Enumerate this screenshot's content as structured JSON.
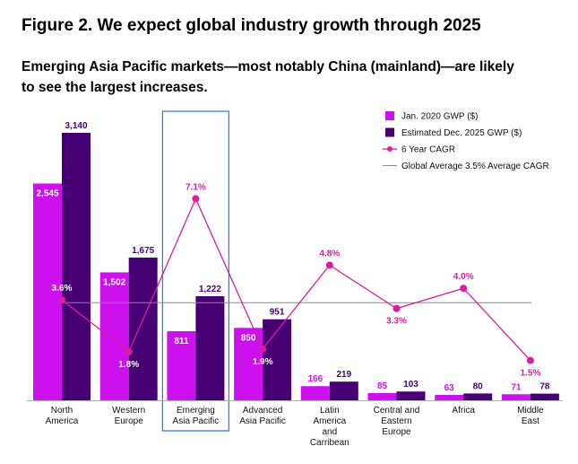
{
  "header": {
    "title": "Figure 2. We expect global industry growth through 2025",
    "subtitle": "Emerging Asia Pacific markets—most notably China (mainland)—are likely to see the largest increases."
  },
  "colors": {
    "jan2020": "#cc11ee",
    "dec2025": "#460073",
    "cagr": "#d61ea0",
    "global_avg": "#8a8a8a",
    "highlight_box": "#3b7ddd"
  },
  "legend": {
    "items": [
      {
        "label": "Jan. 2020 GWP ($)",
        "kind": "square",
        "color": "#cc11ee"
      },
      {
        "label": "Estimated Dec. 2025 GWP ($)",
        "kind": "square",
        "color": "#460073"
      },
      {
        "label": "6 Year CAGR",
        "kind": "line-dot",
        "color": "#d61ea0"
      },
      {
        "label": "Global Average 3.5% Average CAGR",
        "kind": "line",
        "color": "#8a8a8a"
      }
    ]
  },
  "chart_data": {
    "type": "bar",
    "categories": [
      [
        "North",
        "America"
      ],
      [
        "Western",
        "Europe"
      ],
      [
        "Emerging",
        "Asia Pacific"
      ],
      [
        "Advanced",
        "Asia Pacific"
      ],
      [
        "Latin",
        "America",
        "and",
        "Carribean"
      ],
      [
        "Central and",
        "Eastern",
        "Europe"
      ],
      [
        "Africa"
      ],
      [
        "Middle",
        "East"
      ]
    ],
    "series": [
      {
        "name": "Jan. 2020 GWP ($)",
        "values": [
          2545,
          1502,
          811,
          850,
          166,
          85,
          63,
          71
        ],
        "labels": [
          "2,545",
          "1,502",
          "811",
          "850",
          "166",
          "85",
          "63",
          "71"
        ]
      },
      {
        "name": "Estimated Dec. 2025 GWP ($)",
        "values": [
          3140,
          1675,
          1222,
          951,
          219,
          103,
          80,
          78
        ],
        "labels": [
          "3,140",
          "1,675",
          "1,222",
          "951",
          "219",
          "103",
          "80",
          "78"
        ]
      }
    ],
    "cagr": {
      "name": "6 Year CAGR",
      "values": [
        3.6,
        1.8,
        7.1,
        1.9,
        4.8,
        3.3,
        4.0,
        1.5
      ],
      "labels": [
        "3.6%",
        "1.8%",
        "7.1%",
        "1.9%",
        "4.8%",
        "3.3%",
        "4.0%",
        "1.5%"
      ]
    },
    "global_average": {
      "name": "Global Average 3.5% Average CAGR",
      "value": 3.5
    },
    "highlighted_category": "Emerging Asia Pacific",
    "bar_ylim": [
      0,
      3140
    ],
    "cagr_ylim": [
      0,
      7.1
    ],
    "grid": false
  }
}
